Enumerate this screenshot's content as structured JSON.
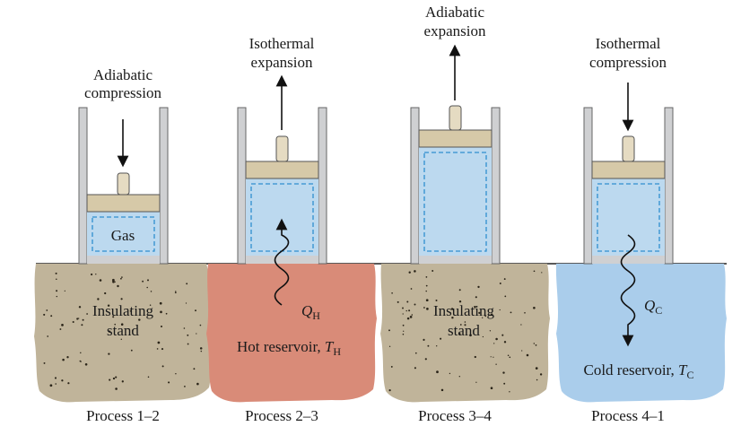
{
  "colors": {
    "wall": "#cfd0d2",
    "piston": "#d6c9a8",
    "rod": "#e5dbc2",
    "gas": "#bcd9ef",
    "gas_dash": "#2f8fcf",
    "sand": "#c0b49a",
    "hot": "#d98b78",
    "cold": "#aacdeb"
  },
  "panels": [
    {
      "process": "Process 1–2",
      "action": [
        "Adiabatic",
        "compression"
      ],
      "gas_label": "Gas",
      "base_type": "sand",
      "base_label": [
        "Insulating",
        "stand"
      ]
    },
    {
      "process": "Process 2–3",
      "action": [
        "Isothermal",
        "expansion"
      ],
      "gas_label": "",
      "base_type": "hot",
      "base_label": [
        "Hot reservoir, "
      ],
      "base_symbol": "T",
      "base_sub": "H",
      "heat_symbol": "Q",
      "heat_sub": "H"
    },
    {
      "process": "Process 3–4",
      "action": [
        "Adiabatic",
        "expansion"
      ],
      "gas_label": "",
      "base_type": "sand",
      "base_label": [
        "Insulating",
        "stand"
      ]
    },
    {
      "process": "Process 4–1",
      "action": [
        "Isothermal",
        "compression"
      ],
      "gas_label": "",
      "base_type": "cold",
      "base_label": [
        "Cold reservoir, "
      ],
      "base_symbol": "T",
      "base_sub": "C",
      "heat_symbol": "Q",
      "heat_sub": "C"
    }
  ]
}
